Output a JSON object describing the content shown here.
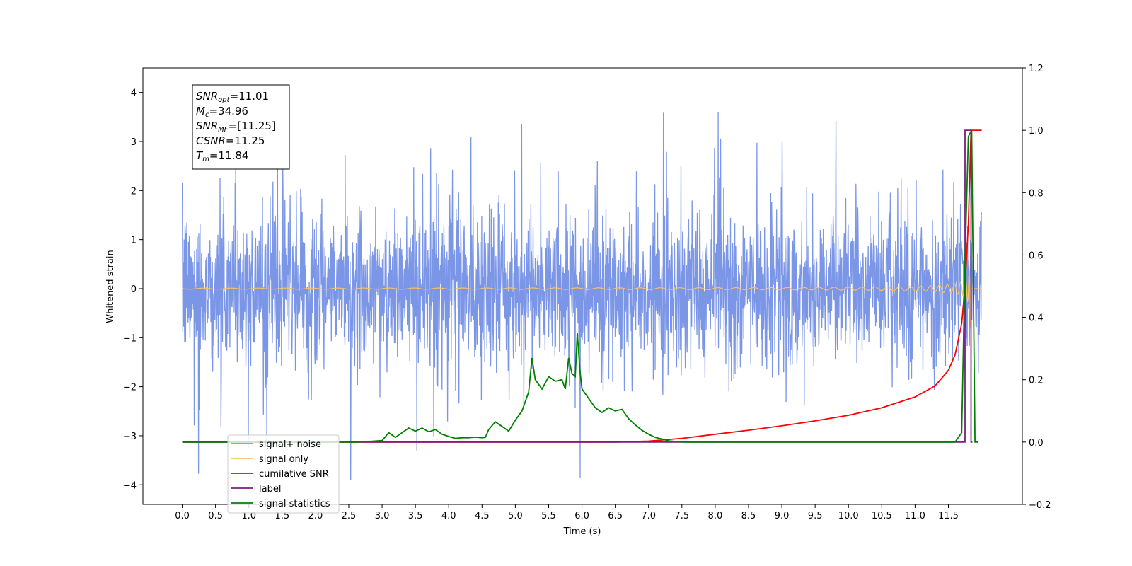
{
  "chart_data": {
    "type": "line",
    "xlabel": "Time (s)",
    "ylabel": "Whitened strain",
    "xlim": [
      -0.59,
      12.61
    ],
    "ylim": [
      -4.4,
      4.5
    ],
    "y2lim": [
      -0.2,
      1.2
    ],
    "x_ticks": [
      "0.0",
      "0.5",
      "1.0",
      "1.5",
      "2.0",
      "2.5",
      "3.0",
      "3.5",
      "4.0",
      "4.5",
      "5.0",
      "5.5",
      "6.0",
      "6.5",
      "7.0",
      "7.5",
      "8.0",
      "8.5",
      "9.0",
      "9.5",
      "10.0",
      "10.5",
      "11.0",
      "11.5"
    ],
    "y_ticks": [
      4,
      3,
      2,
      1,
      0,
      -1,
      -2,
      -3,
      -4
    ],
    "y2_ticks": [
      "1.2",
      "1.0",
      "0.8",
      "0.6",
      "0.4",
      "0.2",
      "0.0",
      "−0.2"
    ],
    "infobox": [
      {
        "main": "SNR",
        "sub": "opt",
        "value": "=11.01"
      },
      {
        "main": "M",
        "sub": "c",
        "value": "=34.96"
      },
      {
        "main": "SNR",
        "sub": "MF",
        "value": "=[11.25]"
      },
      {
        "main": "CSNR",
        "sub": "",
        "value": "=11.25"
      },
      {
        "main": "T",
        "sub": "m",
        "value": "=11.84"
      }
    ],
    "legend": {
      "placement": "lower-left",
      "entries": [
        {
          "label": "signal+ noise",
          "color": "#7b96e6"
        },
        {
          "label": "signal only",
          "color": "#f7c06a"
        },
        {
          "label": "cumilative SNR",
          "color": "#ff0000"
        },
        {
          "label": "label",
          "color": "#7a1f7f"
        },
        {
          "label": "signal statistics",
          "color": "#008000"
        }
      ]
    },
    "series": [
      {
        "name": "signal+ noise",
        "axis": "left",
        "color": "#7b96e6",
        "description": "noise band approx -1.6..1.5 with spikes",
        "t_end": 12.0
      },
      {
        "name": "signal only",
        "axis": "left",
        "color": "#f7c06a",
        "chirp_merger_time": 11.84
      },
      {
        "name": "cumilative SNR",
        "axis": "right",
        "color": "#ff0000",
        "x": [
          0.0,
          6.5,
          7.0,
          7.5,
          8.0,
          8.5,
          9.0,
          9.5,
          10.0,
          10.5,
          11.0,
          11.3,
          11.5,
          11.6,
          11.7,
          11.75,
          11.8,
          11.84,
          12.0
        ],
        "y": [
          0.0,
          0.0,
          0.003,
          0.012,
          0.025,
          0.038,
          0.052,
          0.068,
          0.086,
          0.11,
          0.145,
          0.18,
          0.23,
          0.28,
          0.38,
          0.5,
          0.7,
          1.0,
          1.0
        ]
      },
      {
        "name": "label",
        "axis": "right",
        "color": "#7a1f7f",
        "x": [
          0.0,
          11.75,
          11.75,
          11.84,
          11.84,
          11.86
        ],
        "y": [
          0.0,
          0.0,
          1.0,
          1.0,
          0.0,
          0.0
        ]
      },
      {
        "name": "signal statistics",
        "axis": "right",
        "color": "#008000",
        "x": [
          0.0,
          2.6,
          2.8,
          3.0,
          3.1,
          3.2,
          3.3,
          3.4,
          3.5,
          3.6,
          3.7,
          3.8,
          3.9,
          4.0,
          4.1,
          4.2,
          4.3,
          4.4,
          4.5,
          4.55,
          4.6,
          4.7,
          4.8,
          4.9,
          5.0,
          5.1,
          5.2,
          5.25,
          5.3,
          5.4,
          5.5,
          5.6,
          5.7,
          5.75,
          5.8,
          5.85,
          5.9,
          5.93,
          5.97,
          6.0,
          6.1,
          6.2,
          6.3,
          6.4,
          6.5,
          6.6,
          6.7,
          6.8,
          6.9,
          7.0,
          7.1,
          7.2,
          7.3,
          7.4,
          7.5,
          11.6,
          11.7,
          11.75,
          11.8,
          11.85,
          11.9,
          11.95
        ],
        "y": [
          0.0,
          0.0,
          0.002,
          0.005,
          0.03,
          0.015,
          0.03,
          0.045,
          0.035,
          0.045,
          0.033,
          0.04,
          0.025,
          0.018,
          0.012,
          0.014,
          0.014,
          0.016,
          0.014,
          0.015,
          0.04,
          0.065,
          0.05,
          0.035,
          0.07,
          0.1,
          0.16,
          0.27,
          0.2,
          0.17,
          0.21,
          0.195,
          0.2,
          0.17,
          0.27,
          0.22,
          0.21,
          0.35,
          0.23,
          0.17,
          0.14,
          0.11,
          0.095,
          0.11,
          0.1,
          0.105,
          0.075,
          0.055,
          0.038,
          0.025,
          0.015,
          0.01,
          0.004,
          0.002,
          0.0,
          0.0,
          0.03,
          0.58,
          0.98,
          1.0,
          0.0,
          0.0
        ]
      }
    ]
  }
}
